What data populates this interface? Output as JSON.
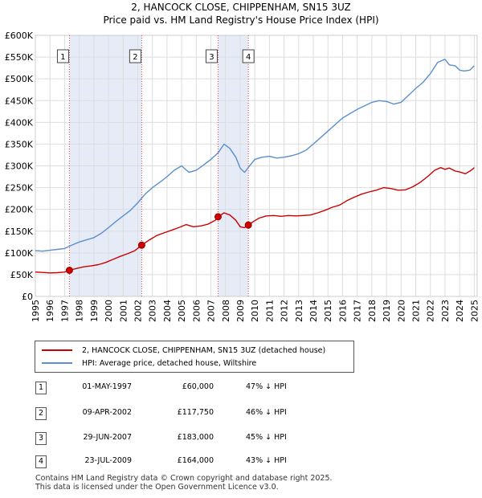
{
  "title": "2, HANCOCK CLOSE, CHIPPENHAM, SN15 3UZ",
  "subtitle": "Price paid vs. HM Land Registry's House Price Index (HPI)",
  "chart_data": {
    "type": "line",
    "title": "2, HANCOCK CLOSE, CHIPPENHAM, SN15 3UZ",
    "xlabel": "",
    "ylabel": "",
    "xlim": [
      1995,
      2025.2
    ],
    "ylim": [
      0,
      600000
    ],
    "y_ticks": [
      0,
      50000,
      100000,
      150000,
      200000,
      250000,
      300000,
      350000,
      400000,
      450000,
      500000,
      550000,
      600000
    ],
    "y_tick_labels": [
      "£0",
      "£50K",
      "£100K",
      "£150K",
      "£200K",
      "£250K",
      "£300K",
      "£350K",
      "£400K",
      "£450K",
      "£500K",
      "£550K",
      "£600K"
    ],
    "x_tick_labels": [
      "1995",
      "1996",
      "1997",
      "1998",
      "1999",
      "2000",
      "2001",
      "2002",
      "2003",
      "2004",
      "2005",
      "2006",
      "2007",
      "2008",
      "2009",
      "2010",
      "2011",
      "2012",
      "2013",
      "2014",
      "2015",
      "2016",
      "2017",
      "2018",
      "2019",
      "2020",
      "2021",
      "2022",
      "2023",
      "2024",
      "2025"
    ],
    "grid": true,
    "series": [
      {
        "name": "2, HANCOCK CLOSE, CHIPPENHAM, SN15 3UZ (detached house)",
        "color": "#cc0000",
        "x": [
          1995.0,
          1995.5,
          1996.0,
          1996.5,
          1997.0,
          1997.33,
          1997.8,
          1998.3,
          1998.8,
          1999.3,
          1999.8,
          2000.3,
          2000.8,
          2001.3,
          2001.8,
          2002.27,
          2002.8,
          2003.3,
          2003.8,
          2004.3,
          2004.8,
          2005.3,
          2005.8,
          2006.3,
          2006.8,
          2007.3,
          2007.49,
          2007.9,
          2008.3,
          2008.7,
          2009.0,
          2009.3,
          2009.56,
          2009.9,
          2010.3,
          2010.8,
          2011.3,
          2011.8,
          2012.3,
          2012.8,
          2013.3,
          2013.8,
          2014.3,
          2014.8,
          2015.3,
          2015.8,
          2016.3,
          2016.8,
          2017.3,
          2017.8,
          2018.3,
          2018.8,
          2019.3,
          2019.8,
          2020.3,
          2020.8,
          2021.3,
          2021.8,
          2022.3,
          2022.7,
          2023.0,
          2023.3,
          2023.7,
          2024.0,
          2024.4,
          2024.8,
          2025.0
        ],
        "values": [
          56000,
          55000,
          54000,
          54500,
          56000,
          60000,
          64000,
          68000,
          70000,
          73000,
          78000,
          85000,
          92000,
          98000,
          105000,
          117750,
          130000,
          140000,
          146000,
          152000,
          158000,
          165000,
          160000,
          162000,
          166000,
          175000,
          183000,
          192000,
          187000,
          175000,
          160000,
          158000,
          164000,
          172000,
          180000,
          185000,
          186000,
          184000,
          186000,
          185000,
          186000,
          187000,
          192000,
          198000,
          205000,
          210000,
          220000,
          228000,
          235000,
          240000,
          244000,
          250000,
          248000,
          244000,
          245000,
          252000,
          262000,
          275000,
          290000,
          296000,
          292000,
          295000,
          288000,
          286000,
          282000,
          290000,
          296000
        ]
      },
      {
        "name": "HPI: Average price, detached house, Wiltshire",
        "color": "#5b8fcc",
        "x": [
          1995.0,
          1995.5,
          1996.0,
          1996.5,
          1997.0,
          1997.5,
          1998.0,
          1998.5,
          1999.0,
          1999.5,
          2000.0,
          2000.5,
          2001.0,
          2001.5,
          2002.0,
          2002.5,
          2003.0,
          2003.5,
          2004.0,
          2004.5,
          2005.0,
          2005.5,
          2006.0,
          2006.5,
          2007.0,
          2007.5,
          2007.9,
          2008.3,
          2008.7,
          2009.0,
          2009.3,
          2009.6,
          2010.0,
          2010.5,
          2011.0,
          2011.5,
          2012.0,
          2012.5,
          2013.0,
          2013.5,
          2014.0,
          2014.5,
          2015.0,
          2015.5,
          2016.0,
          2016.5,
          2017.0,
          2017.5,
          2018.0,
          2018.5,
          2019.0,
          2019.5,
          2020.0,
          2020.5,
          2021.0,
          2021.5,
          2022.0,
          2022.5,
          2023.0,
          2023.3,
          2023.7,
          2024.0,
          2024.3,
          2024.7,
          2025.0
        ],
        "values": [
          105000,
          104000,
          106000,
          108000,
          110000,
          118000,
          125000,
          130000,
          135000,
          145000,
          158000,
          172000,
          185000,
          198000,
          215000,
          235000,
          250000,
          262000,
          275000,
          290000,
          300000,
          285000,
          290000,
          302000,
          315000,
          330000,
          350000,
          340000,
          320000,
          295000,
          285000,
          298000,
          315000,
          320000,
          322000,
          318000,
          320000,
          323000,
          328000,
          336000,
          350000,
          365000,
          380000,
          395000,
          410000,
          420000,
          430000,
          438000,
          446000,
          450000,
          448000,
          442000,
          446000,
          462000,
          478000,
          492000,
          512000,
          538000,
          545000,
          532000,
          530000,
          520000,
          518000,
          520000,
          530000
        ]
      }
    ],
    "markers": [
      {
        "label": "1",
        "x": 1997.33,
        "value": 60000
      },
      {
        "label": "2",
        "x": 2002.27,
        "value": 117750
      },
      {
        "label": "3",
        "x": 2007.49,
        "value": 183000
      },
      {
        "label": "4",
        "x": 2009.56,
        "value": 164000
      }
    ],
    "shaded_ranges": [
      [
        1997.33,
        2002.27
      ],
      [
        2007.49,
        2009.56
      ]
    ]
  },
  "legend": {
    "property": "2, HANCOCK CLOSE, CHIPPENHAM, SN15 3UZ (detached house)",
    "hpi": "HPI: Average price, detached house, Wiltshire"
  },
  "transactions": [
    {
      "num": "1",
      "date": "01-MAY-1997",
      "price": "£60,000",
      "hpi": "47% ↓ HPI"
    },
    {
      "num": "2",
      "date": "09-APR-2002",
      "price": "£117,750",
      "hpi": "46% ↓ HPI"
    },
    {
      "num": "3",
      "date": "29-JUN-2007",
      "price": "£183,000",
      "hpi": "45% ↓ HPI"
    },
    {
      "num": "4",
      "date": "23-JUL-2009",
      "price": "£164,000",
      "hpi": "43% ↓ HPI"
    }
  ],
  "footer": {
    "line1": "Contains HM Land Registry data © Crown copyright and database right 2025.",
    "line2": "This data is licensed under the Open Government Licence v3.0."
  }
}
